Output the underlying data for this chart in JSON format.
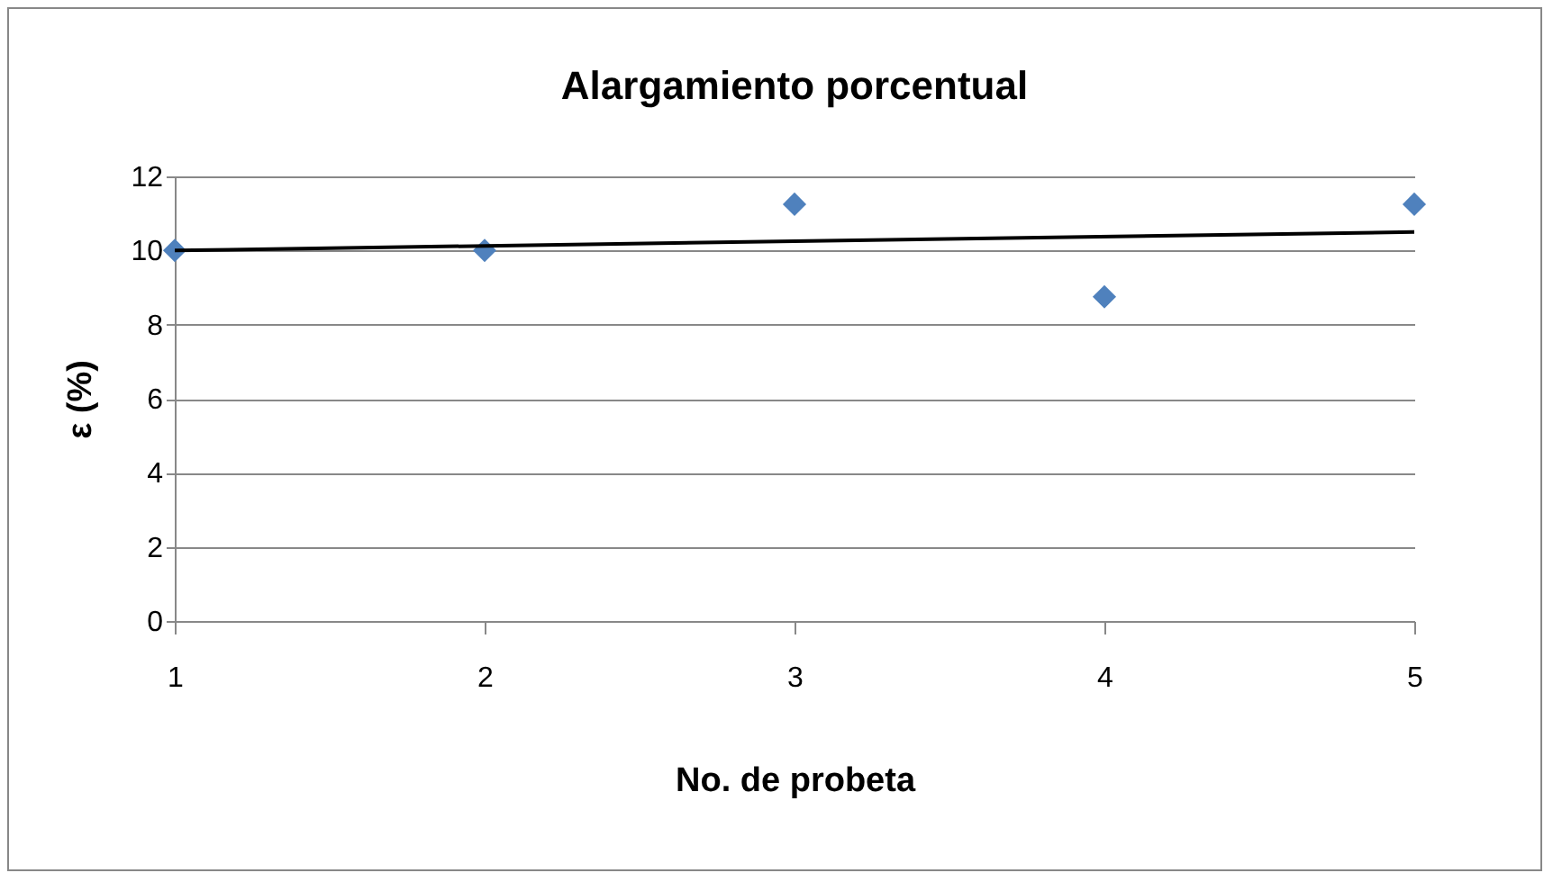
{
  "chart_data": {
    "type": "scatter",
    "title": "Alargamiento porcentual",
    "xlabel": "No. de probeta",
    "ylabel": "ε (%)",
    "x": [
      1,
      2,
      3,
      4,
      5
    ],
    "series": [
      {
        "color": "#4f81bd",
        "marker": "diamond",
        "values": [
          10,
          10,
          11.25,
          8.75,
          11.25
        ]
      },
      {
        "type": "line",
        "color": "#000000",
        "marker": "none",
        "x": [
          1,
          5
        ],
        "values": [
          10,
          10.5
        ]
      }
    ],
    "xlim": [
      1,
      5
    ],
    "xticks": [
      1,
      2,
      3,
      4,
      5
    ],
    "ylim": [
      0,
      12
    ],
    "yticks": [
      0,
      2,
      4,
      6,
      8,
      10,
      12
    ],
    "grid": "y"
  }
}
